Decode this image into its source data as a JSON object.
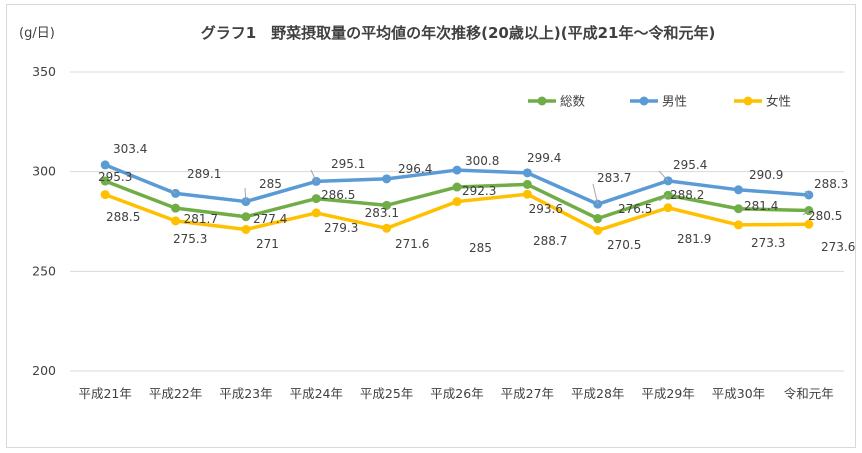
{
  "chart_data": {
    "type": "line",
    "title": "グラフ1　野菜摂取量の平均値の年次推移(20歳以上)(平成21年〜令和元年)",
    "ylabel": "(g/日)",
    "xlabel": "",
    "categories": [
      "平成21年",
      "平成22年",
      "平成23年",
      "平成24年",
      "平成25年",
      "平成26年",
      "平成27年",
      "平成28年",
      "平成29年",
      "平成30年",
      "令和元年"
    ],
    "ylim": [
      200,
      350
    ],
    "yticks": [
      "350",
      "300",
      "250",
      "200"
    ],
    "grid": "horizontal",
    "legend_position": "top-right",
    "series": [
      {
        "name": "総数",
        "color": "#70ad47",
        "values": [
          295.3,
          281.7,
          277.4,
          286.5,
          283.1,
          292.3,
          293.6,
          276.5,
          288.2,
          281.4,
          280.5
        ],
        "labels": [
          "295.3",
          "281.7",
          "277.4",
          "286.5",
          "283.1",
          "292.3",
          "293.6",
          "276.5",
          "288.2",
          "281.4",
          "280.5"
        ]
      },
      {
        "name": "男性",
        "color": "#5b9bd5",
        "values": [
          303.4,
          289.1,
          285,
          295.1,
          296.4,
          300.8,
          299.4,
          283.7,
          295.4,
          290.9,
          288.3
        ],
        "labels": [
          "303.4",
          "289.1",
          "285",
          "295.1",
          "296.4",
          "300.8",
          "299.4",
          "283.7",
          "295.4",
          "290.9",
          "288.3"
        ]
      },
      {
        "name": "女性",
        "color": "#ffc000",
        "values": [
          288.5,
          275.3,
          271,
          279.3,
          271.6,
          285,
          288.7,
          270.5,
          281.9,
          273.3,
          273.6
        ],
        "labels": [
          "288.5",
          "275.3",
          "271",
          "279.3",
          "271.6",
          "285",
          "288.7",
          "270.5",
          "281.9",
          "273.3",
          "273.6"
        ]
      }
    ]
  }
}
